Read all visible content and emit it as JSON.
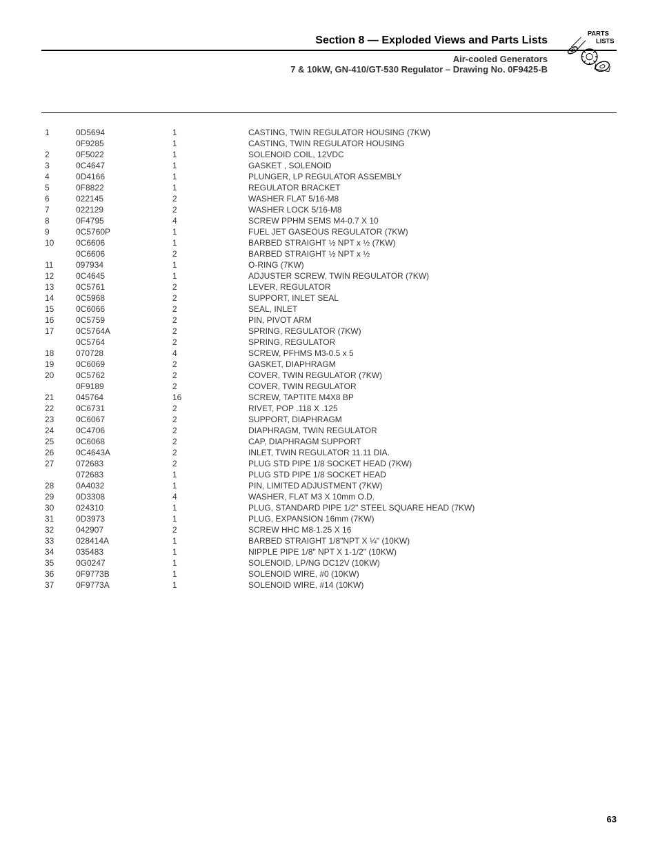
{
  "header": {
    "section_title": "Section 8 — Exploded Views and Parts Lists",
    "subtitle1": "Air-cooled Generators",
    "subtitle2": "7 & 10kW, GN-410/GT-530 Regulator – Drawing No. 0F9425-B",
    "icon_label_top": "PARTS",
    "icon_label_bottom": "LISTS"
  },
  "table": {
    "rows": [
      {
        "item": "1",
        "part": "0D5694",
        "qty": "1",
        "desc": "CASTING, TWIN REGULATOR HOUSING (7KW)"
      },
      {
        "item": "",
        "part": "0F9285",
        "qty": "1",
        "desc": "CASTING, TWIN REGULATOR HOUSING"
      },
      {
        "item": "2",
        "part": "0F5022",
        "qty": "1",
        "desc": "SOLENOID COIL, 12VDC"
      },
      {
        "item": "3",
        "part": "0C4647",
        "qty": "1",
        "desc": "GASKET , SOLENOID"
      },
      {
        "item": "4",
        "part": "0D4166",
        "qty": "1",
        "desc": "PLUNGER, LP REGULATOR ASSEMBLY"
      },
      {
        "item": "5",
        "part": "0F8822",
        "qty": "1",
        "desc": "REGULATOR BRACKET"
      },
      {
        "item": "6",
        "part": "022145",
        "qty": "2",
        "desc": "WASHER FLAT 5/16-M8"
      },
      {
        "item": "7",
        "part": "022129",
        "qty": "2",
        "desc": "WASHER LOCK 5/16-M8"
      },
      {
        "item": "8",
        "part": "0F4795",
        "qty": "4",
        "desc": "SCREW PPHM SEMS M4-0.7 X 10"
      },
      {
        "item": "9",
        "part": "0C5760P",
        "qty": "1",
        "desc": "FUEL JET GASEOUS REGULATOR (7KW)"
      },
      {
        "item": "10",
        "part": "0C6606",
        "qty": "1",
        "desc": "BARBED STRAIGHT ½ NPT x ½  (7KW)"
      },
      {
        "item": "",
        "part": "0C6606",
        "qty": "2",
        "desc": "BARBED STRAIGHT ½ NPT x ½"
      },
      {
        "item": "11",
        "part": "097934",
        "qty": "1",
        "desc": "O-RING (7KW)"
      },
      {
        "item": "12",
        "part": "0C4645",
        "qty": "1",
        "desc": "ADJUSTER SCREW, TWIN REGULATOR (7KW)"
      },
      {
        "item": "13",
        "part": "0C5761",
        "qty": "2",
        "desc": "LEVER, REGULATOR"
      },
      {
        "item": "14",
        "part": "0C5968",
        "qty": "2",
        "desc": "SUPPORT, INLET SEAL"
      },
      {
        "item": "15",
        "part": "0C6066",
        "qty": "2",
        "desc": "SEAL, INLET"
      },
      {
        "item": "16",
        "part": "0C5759",
        "qty": "2",
        "desc": "PIN, PIVOT ARM"
      },
      {
        "item": "17",
        "part": "0C5764A",
        "qty": "2",
        "desc": "SPRING, REGULATOR (7KW)"
      },
      {
        "item": "",
        "part": "0C5764",
        "qty": "2",
        "desc": "SPRING, REGULATOR"
      },
      {
        "item": "18",
        "part": "070728",
        "qty": "4",
        "desc": "SCREW, PFHMS M3-0.5 x 5"
      },
      {
        "item": "19",
        "part": "0C6069",
        "qty": "2",
        "desc": "GASKET, DIAPHRAGM"
      },
      {
        "item": "20",
        "part": "0C5762",
        "qty": "2",
        "desc": "COVER, TWIN REGULATOR (7KW)"
      },
      {
        "item": "",
        "part": "0F9189",
        "qty": "2",
        "desc": "COVER, TWIN REGULATOR"
      },
      {
        "item": "21",
        "part": "045764",
        "qty": "16",
        "desc": "SCREW, TAPTITE M4X8 BP"
      },
      {
        "item": "22",
        "part": "0C6731",
        "qty": "2",
        "desc": "RIVET, POP .118 X .125"
      },
      {
        "item": "23",
        "part": "0C6067",
        "qty": "2",
        "desc": "SUPPORT, DIAPHRAGM"
      },
      {
        "item": "24",
        "part": "0C4706",
        "qty": "2",
        "desc": "DIAPHRAGM, TWIN REGULATOR"
      },
      {
        "item": "25",
        "part": "0C6068",
        "qty": "2",
        "desc": "CAP, DIAPHRAGM SUPPORT"
      },
      {
        "item": "26",
        "part": "0C4643A",
        "qty": "2",
        "desc": "INLET, TWIN REGULATOR 11.11 DIA."
      },
      {
        "item": "27",
        "part": "072683",
        "qty": "2",
        "desc": "PLUG STD PIPE 1/8 SOCKET HEAD (7KW)"
      },
      {
        "item": "",
        "part": "072683",
        "qty": "1",
        "desc": "PLUG STD PIPE 1/8 SOCKET HEAD"
      },
      {
        "item": "28",
        "part": "0A4032",
        "qty": "1",
        "desc": "PIN, LIMITED ADJUSTMENT (7KW)"
      },
      {
        "item": "29",
        "part": "0D3308",
        "qty": "4",
        "desc": "WASHER, FLAT M3 X 10mm O.D."
      },
      {
        "item": "30",
        "part": "024310",
        "qty": "1",
        "desc": "PLUG, STANDARD PIPE 1/2\" STEEL SQUARE HEAD (7KW)"
      },
      {
        "item": "31",
        "part": "0D3973",
        "qty": "1",
        "desc": "PLUG, EXPANSION 16mm (7KW)"
      },
      {
        "item": "32",
        "part": "042907",
        "qty": "2",
        "desc": "SCREW HHC M8-1.25 X 16"
      },
      {
        "item": "33",
        "part": "028414A",
        "qty": "1",
        "desc": "BARBED STRAIGHT 1/8\"NPT X ¼\" (10KW)"
      },
      {
        "item": "34",
        "part": "035483",
        "qty": "1",
        "desc": "NIPPLE PIPE 1/8\" NPT X 1-1/2\" (10KW)"
      },
      {
        "item": "35",
        "part": "0G0247",
        "qty": "1",
        "desc": "SOLENOID, LP/NG DC12V (10KW)"
      },
      {
        "item": "36",
        "part": "0F9773B",
        "qty": "1",
        "desc": "SOLENOID WIRE, #0 (10KW)"
      },
      {
        "item": "37",
        "part": "0F9773A",
        "qty": "1",
        "desc": "SOLENOID WIRE, #14 (10KW)"
      }
    ]
  },
  "page_number": "63",
  "colors": {
    "text": "#333333",
    "border": "#000000",
    "background": "#ffffff"
  },
  "fonts": {
    "body_size": 12,
    "title_size": 16,
    "subtitle_size": 13
  }
}
